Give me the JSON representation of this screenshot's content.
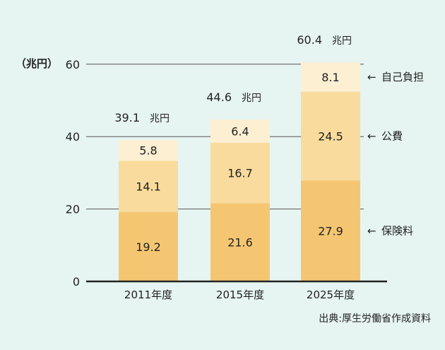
{
  "chart_data": {
    "type": "bar",
    "stacked": true,
    "categories": [
      "2011年度",
      "2015年度",
      "2025年度"
    ],
    "series": [
      {
        "name": "保険料",
        "values": [
          19.2,
          21.6,
          27.9
        ],
        "color": "#f5c672"
      },
      {
        "name": "公費",
        "values": [
          14.1,
          16.7,
          24.5
        ],
        "color": "#f9dc9d"
      },
      {
        "name": "自己負担",
        "values": [
          5.8,
          6.4,
          8.1
        ],
        "color": "#fcefd2"
      }
    ],
    "totals": [
      {
        "value": "39.1",
        "unit": "兆円"
      },
      {
        "value": "44.6",
        "unit": "兆円"
      },
      {
        "value": "60.4",
        "unit": "兆円"
      }
    ],
    "ylabel": "（兆円）",
    "yticks": [
      0,
      20,
      40,
      60
    ],
    "ylim": [
      0,
      60
    ],
    "grid": true,
    "legend": "right",
    "legend_arrow": "←",
    "source": "出典:厚生労働省作成資料",
    "colors": {
      "background": "#e6f5f1",
      "axis": "#222222"
    }
  }
}
